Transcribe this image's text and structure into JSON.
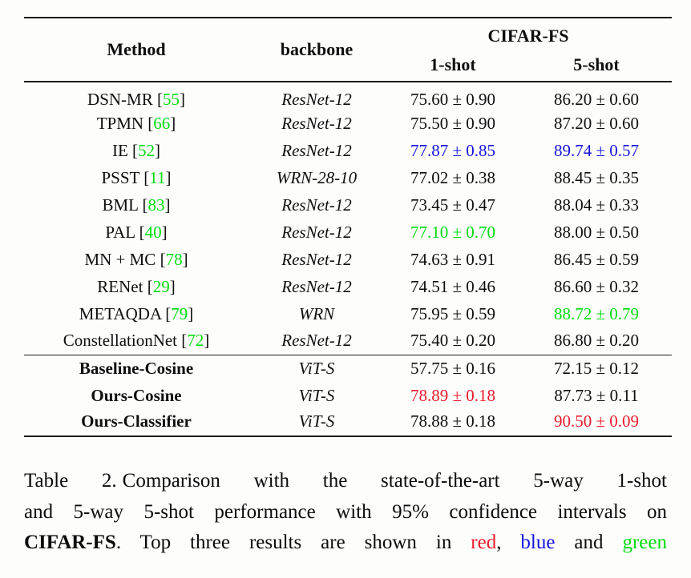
{
  "colors": {
    "red": "#ec1a2c",
    "blue": "#1412dc",
    "green": "#00dc0e",
    "rule": "#1c1c1c"
  },
  "table": {
    "header": {
      "method": "Method",
      "backbone": "backbone",
      "dataset": "CIFAR-FS",
      "shot1": "1-shot",
      "shot5": "5-shot"
    },
    "rows": [
      {
        "method": "DSN-MR",
        "cite": "55",
        "backbone": "ResNet-12",
        "bold": false,
        "rule_above": false,
        "shot1": {
          "text": "75.60 ± 0.90",
          "color": null
        },
        "shot5": {
          "text": "86.20 ± 0.60",
          "color": null
        }
      },
      {
        "method": "TPMN",
        "cite": "66",
        "backbone": "ResNet-12",
        "bold": false,
        "rule_above": false,
        "shot1": {
          "text": "75.50 ± 0.90",
          "color": null
        },
        "shot5": {
          "text": "87.20 ± 0.60",
          "color": null
        }
      },
      {
        "method": "IE",
        "cite": "52",
        "backbone": "ResNet-12",
        "bold": false,
        "rule_above": false,
        "shot1": {
          "text": "77.87 ± 0.85",
          "color": "blue"
        },
        "shot5": {
          "text": "89.74 ± 0.57",
          "color": "blue"
        }
      },
      {
        "method": "PSST",
        "cite": "11",
        "backbone": "WRN-28-10",
        "bold": false,
        "rule_above": false,
        "shot1": {
          "text": "77.02 ± 0.38",
          "color": null
        },
        "shot5": {
          "text": "88.45 ± 0.35",
          "color": null
        }
      },
      {
        "method": "BML",
        "cite": "83",
        "backbone": "ResNet-12",
        "bold": false,
        "rule_above": false,
        "shot1": {
          "text": "73.45 ± 0.47",
          "color": null
        },
        "shot5": {
          "text": "88.04 ± 0.33",
          "color": null
        }
      },
      {
        "method": "PAL",
        "cite": "40",
        "backbone": "ResNet-12",
        "bold": false,
        "rule_above": false,
        "shot1": {
          "text": "77.10 ± 0.70",
          "color": "green"
        },
        "shot5": {
          "text": "88.00 ± 0.50",
          "color": null
        }
      },
      {
        "method": "MN + MC",
        "cite": "78",
        "backbone": "ResNet-12",
        "bold": false,
        "rule_above": false,
        "shot1": {
          "text": "74.63 ± 0.91",
          "color": null
        },
        "shot5": {
          "text": "86.45 ± 0.59",
          "color": null
        }
      },
      {
        "method": "RENet",
        "cite": "29",
        "backbone": "ResNet-12",
        "bold": false,
        "rule_above": false,
        "shot1": {
          "text": "74.51 ± 0.46",
          "color": null
        },
        "shot5": {
          "text": "86.60 ± 0.32",
          "color": null
        }
      },
      {
        "method": "METAQDA",
        "cite": "79",
        "backbone": "WRN",
        "bold": false,
        "rule_above": false,
        "shot1": {
          "text": "75.95 ± 0.59",
          "color": null
        },
        "shot5": {
          "text": "88.72 ± 0.79",
          "color": "green"
        }
      },
      {
        "method": "ConstellationNet",
        "cite": "72",
        "backbone": "ResNet-12",
        "bold": false,
        "rule_above": false,
        "shot1": {
          "text": "75.40 ± 0.20",
          "color": null
        },
        "shot5": {
          "text": "86.80 ± 0.20",
          "color": null
        }
      },
      {
        "method": "Baseline-Cosine",
        "cite": null,
        "backbone": "ViT-S",
        "bold": true,
        "rule_above": true,
        "shot1": {
          "text": "57.75 ± 0.16",
          "color": null
        },
        "shot5": {
          "text": "72.15 ± 0.12",
          "color": null
        }
      },
      {
        "method": "Ours-Cosine",
        "cite": null,
        "backbone": "ViT-S",
        "bold": true,
        "rule_above": false,
        "shot1": {
          "text": "78.89 ± 0.18",
          "color": "red"
        },
        "shot5": {
          "text": "87.73 ± 0.11",
          "color": null
        }
      },
      {
        "method": "Ours-Classifier",
        "cite": null,
        "backbone": "ViT-S",
        "bold": true,
        "rule_above": false,
        "shot1": {
          "text": "78.88 ± 0.18",
          "color": null
        },
        "shot5": {
          "text": "90.50 ± 0.09",
          "color": "red"
        }
      }
    ]
  },
  "caption": {
    "label": "Table 2.",
    "line1_rest": "Comparison with the state-of-the-art 5-way 1-shot",
    "line2": "and 5-way 5-shot performance with 95% confidence intervals on",
    "line3_dataset": "CIFAR-FS",
    "line3_mid": ". Top three results are shown in ",
    "red_word": "red",
    "sep1": ", ",
    "blue_word": "blue",
    "sep2": " and ",
    "green_word": "green"
  }
}
